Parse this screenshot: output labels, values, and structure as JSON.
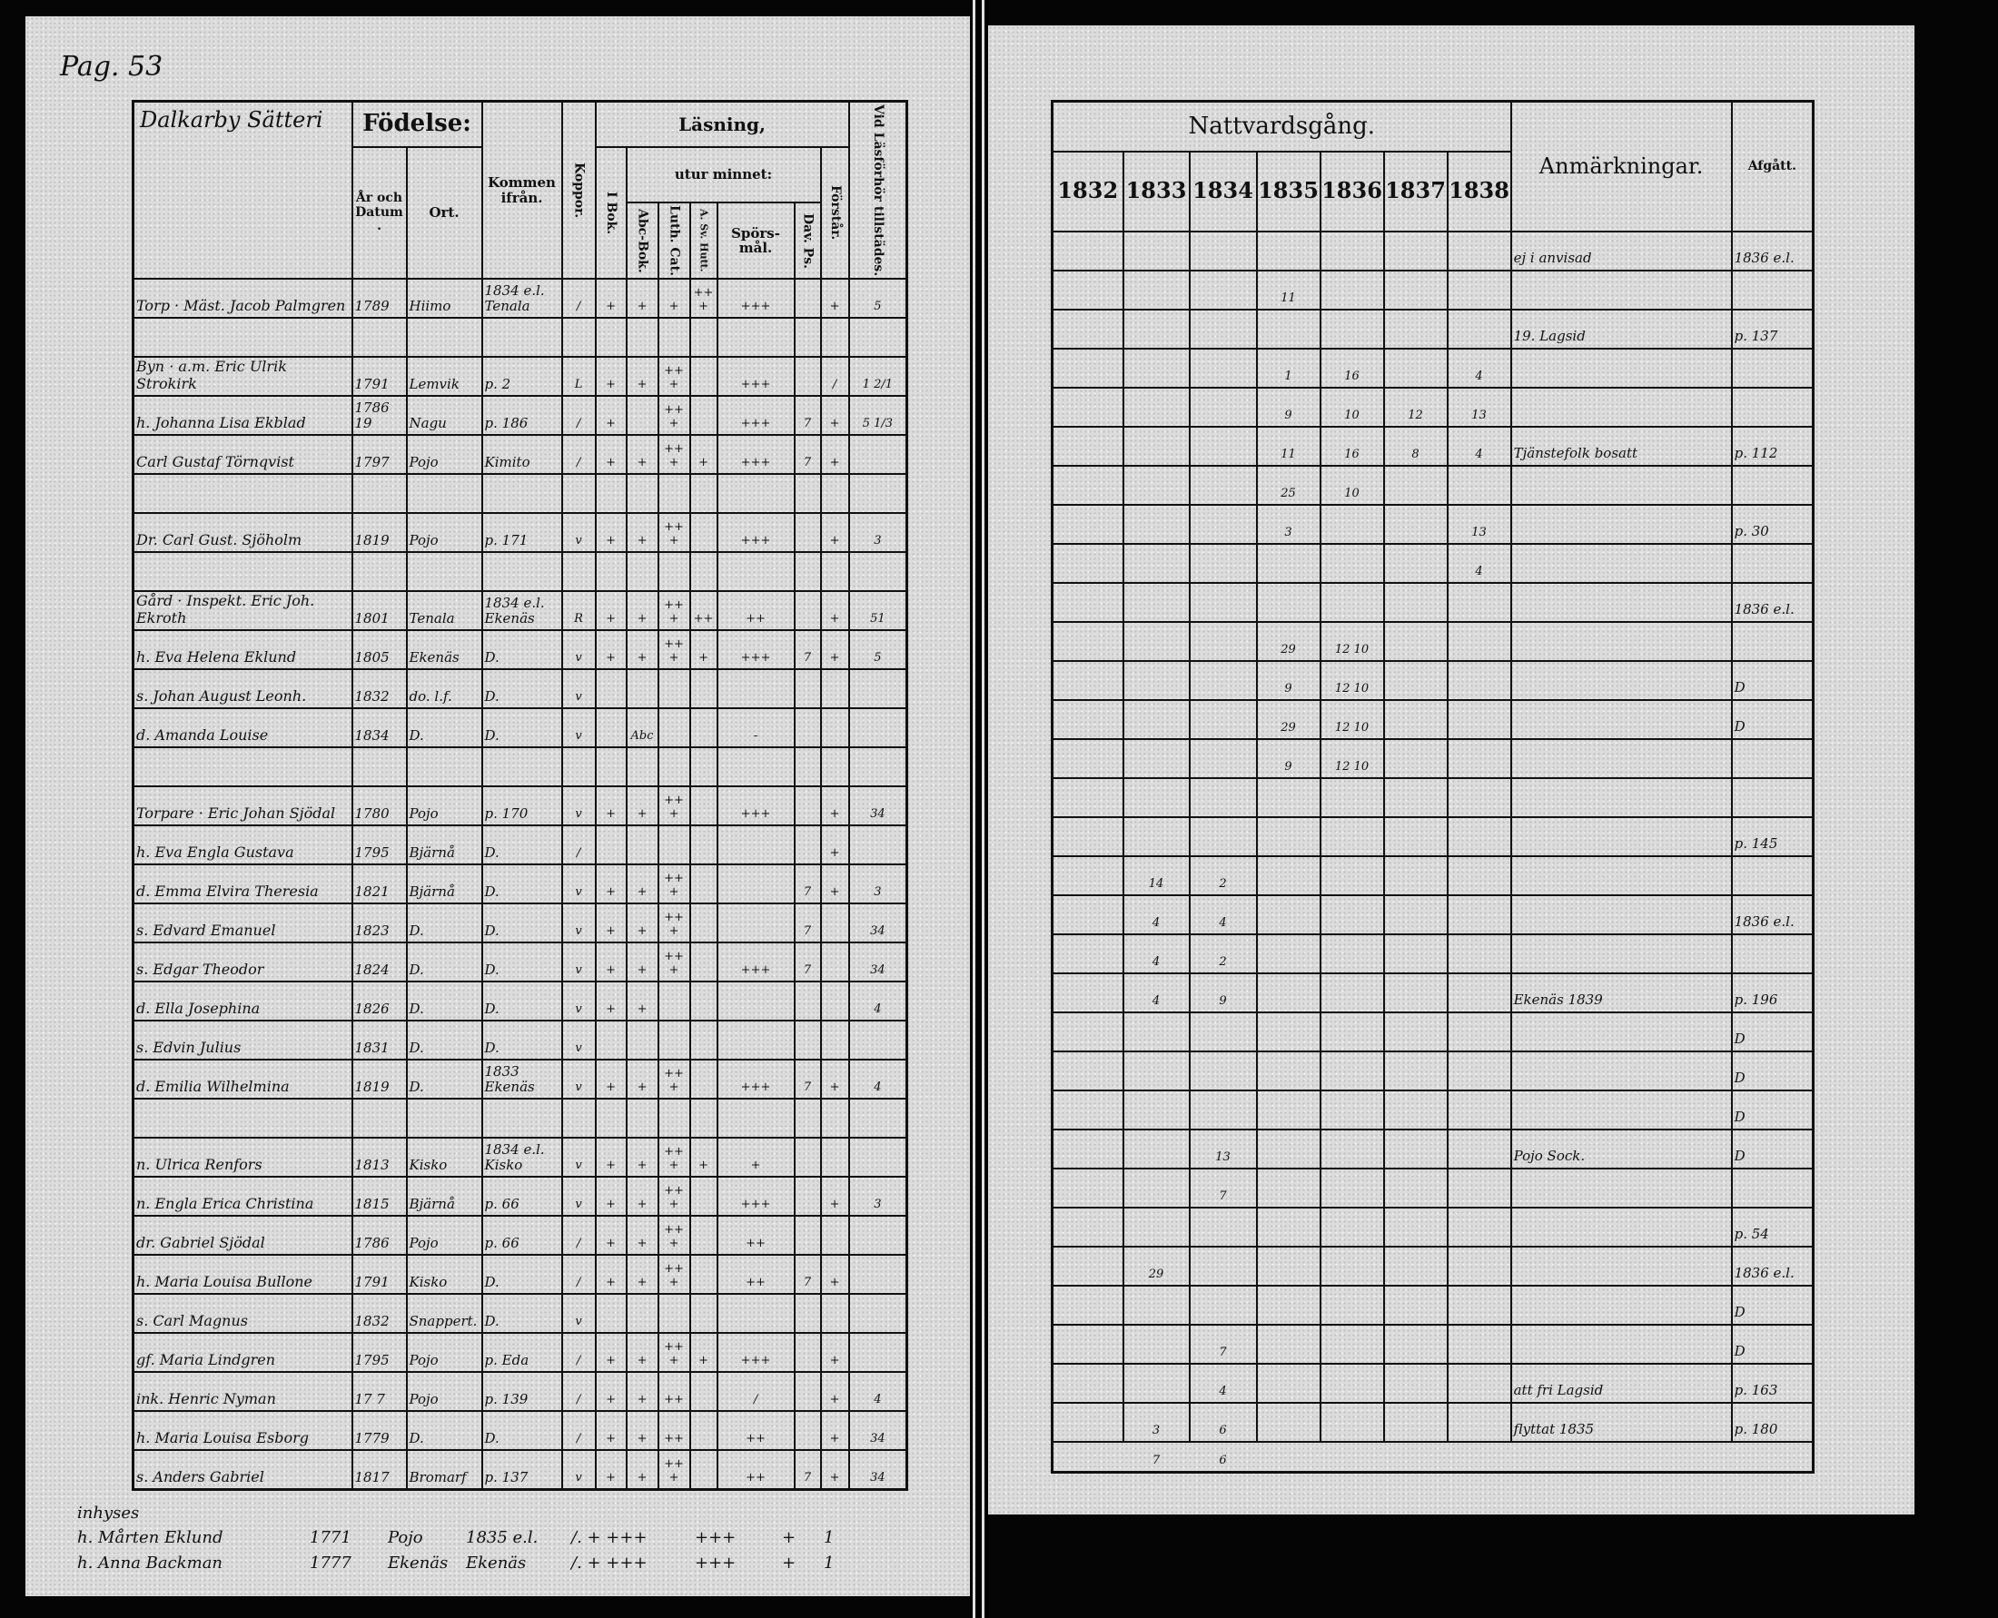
{
  "page_label": "Pag. 53",
  "left": {
    "place_title": "Dalkarby Sätteri",
    "headers": {
      "fodelse": "Födelse:",
      "ar_datum": "År och Datum.",
      "ort": "Ort.",
      "kommen": "Kommen ifrån.",
      "koppor": "Koppor.",
      "lasning": "Läsning,",
      "utur_minnet": "utur minnet:",
      "i_bok": "I Bok.",
      "abc": "Abc-Bok.",
      "luth": "Luth. Cat.",
      "hutt": "A. Sv. Hutt.",
      "sporsmal": "Spörs-mål.",
      "dav": "Dav. Ps.",
      "forstar": "Förstår.",
      "vid": "Vid Läsförhör tillstädes."
    },
    "rows": [
      [
        "Torp · Mäst. Jacob Palmgren",
        "1789",
        "Hiimo",
        "1834 e.l. Tenala",
        "/",
        "+",
        "+",
        "+",
        "+++",
        "+++",
        "",
        "+",
        "5"
      ],
      [
        "",
        "",
        "",
        "",
        "",
        "",
        "",
        "",
        "",
        "",
        "",
        "",
        ""
      ],
      [
        "Byn · a.m. Eric Ulrik Strokirk",
        "1791",
        "Lemvik",
        "p. 2",
        "L",
        "+",
        "+",
        "+++",
        "",
        "+++",
        "",
        "/",
        "1 2/1"
      ],
      [
        "h. Johanna Lisa Ekblad",
        "1786 19",
        "Nagu",
        "p. 186",
        "/",
        "+",
        "",
        "+++",
        "",
        "+++",
        "7",
        "+",
        "5 1/3"
      ],
      [
        "Carl Gustaf Törnqvist",
        "1797",
        "Pojo",
        "Kimito",
        "/",
        "+",
        "+",
        "+++",
        "+",
        "+++",
        "7",
        "+",
        ""
      ],
      [
        "",
        "",
        "",
        "",
        "",
        "",
        "",
        "",
        "",
        "",
        "",
        "",
        ""
      ],
      [
        "Dr. Carl Gust. Sjöholm",
        "1819",
        "Pojo",
        "p. 171",
        "v",
        "+",
        "+",
        "+++",
        "",
        "+++",
        "",
        "+",
        "3"
      ],
      [
        "",
        "",
        "",
        "",
        "",
        "",
        "",
        "",
        "",
        "",
        "",
        "",
        ""
      ],
      [
        "Gård · Inspekt. Eric Joh. Ekroth",
        "1801",
        "Tenala",
        "1834 e.l. Ekenäs",
        "R",
        "+",
        "+",
        "+++",
        "++",
        "++",
        "",
        "+",
        "51"
      ],
      [
        "h. Eva Helena Eklund",
        "1805",
        "Ekenäs",
        "D.",
        "v",
        "+",
        "+",
        "+++",
        "+",
        "+++",
        "7",
        "+",
        "5"
      ],
      [
        "s. Johan August Leonh.",
        "1832",
        "do. l.f.",
        "D.",
        "v",
        "",
        "",
        "",
        "",
        "",
        "",
        "",
        ""
      ],
      [
        "d. Amanda Louise",
        "1834",
        "D.",
        "D.",
        "v",
        "",
        "Abc",
        "",
        "",
        "-",
        "",
        "",
        ""
      ],
      [
        "",
        "",
        "",
        "",
        "",
        "",
        "",
        "",
        "",
        "",
        "",
        "",
        ""
      ],
      [
        "Torpare · Eric Johan Sjödal",
        "1780",
        "Pojo",
        "p. 170",
        "v",
        "+",
        "+",
        "+++",
        "",
        "+++",
        "",
        "+",
        "34"
      ],
      [
        "h. Eva Engla Gustava",
        "1795",
        "Bjärnå",
        "D.",
        "/",
        "",
        "",
        "",
        "",
        "",
        "",
        "+",
        ""
      ],
      [
        "d. Emma Elvira Theresia",
        "1821",
        "Bjärnå",
        "D.",
        "v",
        "+",
        "+",
        "+++",
        "",
        "",
        "7",
        "+",
        "3"
      ],
      [
        "s. Edvard Emanuel",
        "1823",
        "D.",
        "D.",
        "v",
        "+",
        "+",
        "+++",
        "",
        "",
        "7",
        "",
        "34"
      ],
      [
        "s. Edgar Theodor",
        "1824",
        "D.",
        "D.",
        "v",
        "+",
        "+",
        "+++",
        "",
        "+++",
        "7",
        "",
        "34"
      ],
      [
        "d. Ella Josephina",
        "1826",
        "D.",
        "D.",
        "v",
        "+",
        "+",
        "",
        "",
        "",
        "",
        "",
        "4"
      ],
      [
        "s. Edvin Julius",
        "1831",
        "D.",
        "D.",
        "v",
        "",
        "",
        "",
        "",
        "",
        "",
        "",
        ""
      ],
      [
        "d. Emilia Wilhelmina",
        "1819",
        "D.",
        "1833 Ekenäs",
        "v",
        "+",
        "+",
        "+++",
        "",
        "+++",
        "7",
        "+",
        "4"
      ],
      [
        "",
        "",
        "",
        "",
        "",
        "",
        "",
        "",
        "",
        "",
        "",
        "",
        ""
      ],
      [
        "n. Ulrica Renfors",
        "1813",
        "Kisko",
        "1834 e.l. Kisko",
        "v",
        "+",
        "+",
        "+++",
        "+",
        "+",
        "",
        "",
        ""
      ],
      [
        "n. Engla Erica Christina",
        "1815",
        "Bjärnå",
        "p. 66",
        "v",
        "+",
        "+",
        "+++",
        "",
        "+++",
        "",
        "+",
        "3"
      ],
      [
        "dr. Gabriel Sjödal",
        "1786",
        "Pojo",
        "p. 66",
        "/",
        "+",
        "+",
        "+++",
        "",
        "++",
        "",
        "",
        ""
      ],
      [
        "h. Maria Louisa Bullone",
        "1791",
        "Kisko",
        "D.",
        "/",
        "+",
        "+",
        "+++",
        "",
        "++",
        "7",
        "+",
        ""
      ],
      [
        "s. Carl Magnus",
        "1832",
        "Snappert.",
        "D.",
        "v",
        "",
        "",
        "",
        "",
        "",
        "",
        "",
        ""
      ],
      [
        "gf. Maria Lindgren",
        "1795",
        "Pojo",
        "p. Eda",
        "/",
        "+",
        "+",
        "+++",
        "+",
        "+++",
        "",
        "+",
        ""
      ],
      [
        "ink. Henric Nyman",
        "17 7",
        "Pojo",
        "p. 139",
        "/",
        "+",
        "+",
        "++",
        "",
        "/",
        "",
        "+",
        "4"
      ],
      [
        "h. Maria Louisa Esborg",
        "1779",
        "D.",
        "D.",
        "/",
        "+",
        "+",
        "++",
        "",
        "++",
        "",
        "+",
        "34"
      ],
      [
        "s. Anders Gabriel",
        "1817",
        "Bromarf",
        "p. 137",
        "v",
        "+",
        "+",
        "+++",
        "",
        "++",
        "7",
        "+",
        "34"
      ]
    ],
    "footer": {
      "heading": "inhyses",
      "lines": [
        [
          "h. Mårten Eklund",
          "1771",
          "Pojo",
          "1835 e.l.",
          "/. + +++",
          "+++",
          "+",
          "1"
        ],
        [
          "h. Anna Backman",
          "1777",
          "Ekenäs",
          "Ekenäs",
          "/. + +++",
          "+++",
          "+",
          "1"
        ]
      ]
    }
  },
  "right": {
    "headers": {
      "nattvard": "Nattvardsgång.",
      "years": [
        "1832",
        "1833",
        "1834",
        "1835",
        "1836",
        "1837",
        "1838"
      ],
      "anm": "Anmärkningar.",
      "afgatt": "Afgått."
    },
    "rows": [
      [
        "",
        "",
        "",
        "",
        "",
        "",
        "",
        "ej i anvisad",
        "1836 e.l."
      ],
      [
        "",
        "",
        "",
        "11",
        "",
        "",
        "",
        "",
        ""
      ],
      [
        "",
        "",
        "",
        "",
        "",
        "",
        "",
        "19. Lagsid",
        "p. 137"
      ],
      [
        "",
        "",
        "",
        "1",
        "16",
        "",
        "4",
        "",
        ""
      ],
      [
        "",
        "",
        "",
        "9",
        "10",
        "12",
        "13",
        "",
        ""
      ],
      [
        "",
        "",
        "",
        "11",
        "16",
        "8",
        "4",
        "Tjänstefolk bosatt",
        "p. 112"
      ],
      [
        "",
        "",
        "",
        "25",
        "10",
        "",
        "",
        "",
        ""
      ],
      [
        "",
        "",
        "",
        "3",
        "",
        "",
        "13",
        "",
        "p. 30"
      ],
      [
        "",
        "",
        "",
        "",
        "",
        "",
        "4",
        "",
        ""
      ],
      [
        "",
        "",
        "",
        "",
        "",
        "",
        "",
        "",
        "1836 e.l."
      ],
      [
        "",
        "",
        "",
        "29",
        "12 10",
        "",
        "",
        "",
        ""
      ],
      [
        "",
        "",
        "",
        "9",
        "12 10",
        "",
        "",
        "",
        "D"
      ],
      [
        "",
        "",
        "",
        "29",
        "12 10",
        "",
        "",
        "",
        "D"
      ],
      [
        "",
        "",
        "",
        "9",
        "12 10",
        "",
        "",
        "",
        ""
      ],
      [
        "",
        "",
        "",
        "",
        "",
        "",
        "",
        "",
        ""
      ],
      [
        "",
        "",
        "",
        "",
        "",
        "",
        "",
        "",
        "p. 145"
      ],
      [
        "",
        "14",
        "2",
        "",
        "",
        "",
        "",
        "",
        ""
      ],
      [
        "",
        "4",
        "4",
        "",
        "",
        "",
        "",
        "",
        "1836 e.l."
      ],
      [
        "",
        "4",
        "2",
        "",
        "",
        "",
        "",
        "",
        ""
      ],
      [
        "",
        "4",
        "9",
        "",
        "",
        "",
        "",
        "Ekenäs 1839",
        "p. 196"
      ],
      [
        "",
        "",
        "",
        "",
        "",
        "",
        "",
        "",
        "D"
      ],
      [
        "",
        "",
        "",
        "",
        "",
        "",
        "",
        "",
        "D"
      ],
      [
        "",
        "",
        "",
        "",
        "",
        "",
        "",
        "",
        "D"
      ],
      [
        "",
        "",
        "13",
        "",
        "",
        "",
        "",
        "Pojo Sock.",
        "D"
      ],
      [
        "",
        "",
        "7",
        "",
        "",
        "",
        "",
        "",
        ""
      ],
      [
        "",
        "",
        "",
        "",
        "",
        "",
        "",
        "",
        "p. 54"
      ],
      [
        "",
        "29",
        "",
        "",
        "",
        "",
        "",
        "",
        "1836 e.l."
      ],
      [
        "",
        "",
        "",
        "",
        "",
        "",
        "",
        "",
        "D"
      ],
      [
        "",
        "",
        "7",
        "",
        "",
        "",
        "",
        "",
        "D"
      ],
      [
        "",
        "",
        "4",
        "",
        "",
        "",
        "",
        "att fri Lagsid",
        "p. 163"
      ],
      [
        "",
        "3",
        "6",
        "",
        "",
        "",
        "",
        "flyttat 1835",
        "p. 180"
      ]
    ],
    "after_rows": [
      [
        "",
        "7",
        "6"
      ]
    ]
  }
}
